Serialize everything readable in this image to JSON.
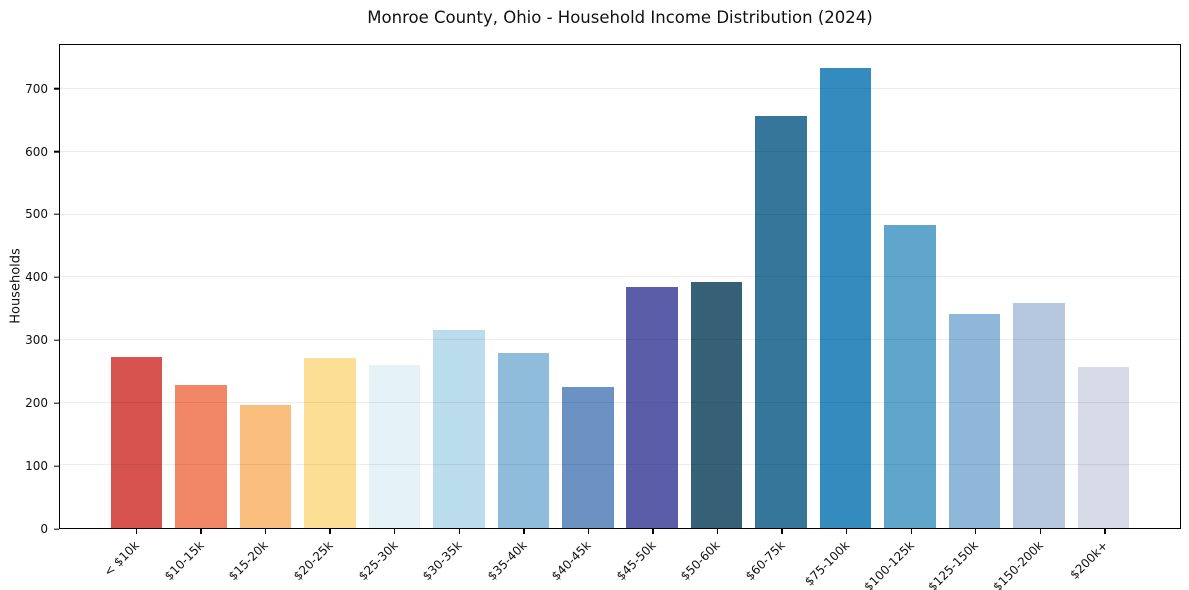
{
  "chart_data": {
    "type": "bar",
    "title": "Monroe County, Ohio - Household Income Distribution (2024)",
    "xlabel": "",
    "ylabel": "Households",
    "categories": [
      "< $10k",
      "$10-15k",
      "$15-20k",
      "$20-25k",
      "$25-30k",
      "$30-35k",
      "$35-40k",
      "$40-45k",
      "$45-50k",
      "$50-60k",
      "$60-75k",
      "$75-100k",
      "$100-125k",
      "$125-150k",
      "$150-200k",
      "$200k+"
    ],
    "values": [
      273,
      229,
      197,
      271,
      261,
      316,
      280,
      225,
      384,
      393,
      658,
      734,
      484,
      341,
      359,
      257
    ],
    "bar_colors": [
      "#d65350",
      "#f28768",
      "#fabf7f",
      "#fcdf94",
      "#e5f2f8",
      "#badced",
      "#90bcdc",
      "#6c91c3",
      "#5a5ea8",
      "#356076",
      "#35769a",
      "#348cbe",
      "#60a6cc",
      "#8eb7d9",
      "#b6c8e0",
      "#d7dae7"
    ],
    "yticks": [
      0,
      100,
      200,
      300,
      400,
      500,
      600,
      700
    ],
    "ylim": [
      0,
      771
    ],
    "xlim": [
      -1.19,
      16.19
    ],
    "bar_width": 0.8,
    "grid": "horizontal-only",
    "legend": "none",
    "background_color": "#ffffff",
    "gridline_color": "#ececec",
    "spine_color": "#000000",
    "text_color": "#111111"
  }
}
